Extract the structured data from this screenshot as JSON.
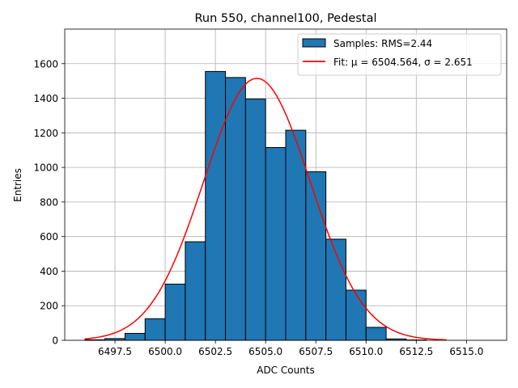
{
  "chart_data": {
    "type": "bar",
    "title": "Run 550, channel100, Pedestal",
    "xlabel": "ADC Counts",
    "ylabel": "Entries",
    "xlim": [
      6495.0,
      6517.0
    ],
    "ylim": [
      0,
      1800
    ],
    "xticks": [
      6497.5,
      6500.0,
      6502.5,
      6505.0,
      6507.5,
      6510.0,
      6512.5,
      6515.0
    ],
    "xtick_labels": [
      "6497.5",
      "6500.0",
      "6502.5",
      "6505.0",
      "6507.5",
      "6510.0",
      "6512.5",
      "6515.0"
    ],
    "yticks": [
      0,
      200,
      400,
      600,
      800,
      1000,
      1200,
      1400,
      1600
    ],
    "ytick_labels": [
      "0",
      "200",
      "400",
      "600",
      "800",
      "1000",
      "1200",
      "1400",
      "1600"
    ],
    "grid": true,
    "bin_width": 1.0,
    "bins": [
      {
        "left": 6496,
        "count": 3
      },
      {
        "left": 6497,
        "count": 10
      },
      {
        "left": 6498,
        "count": 40
      },
      {
        "left": 6499,
        "count": 125
      },
      {
        "left": 6500,
        "count": 325
      },
      {
        "left": 6501,
        "count": 570
      },
      {
        "left": 6502,
        "count": 1555
      },
      {
        "left": 6503,
        "count": 1520
      },
      {
        "left": 6504,
        "count": 1395
      },
      {
        "left": 6505,
        "count": 1115
      },
      {
        "left": 6506,
        "count": 1215
      },
      {
        "left": 6507,
        "count": 975
      },
      {
        "left": 6508,
        "count": 585
      },
      {
        "left": 6509,
        "count": 290
      },
      {
        "left": 6510,
        "count": 75
      },
      {
        "left": 6511,
        "count": 8
      },
      {
        "left": 6512,
        "count": 2
      },
      {
        "left": 6513,
        "count": 0
      },
      {
        "left": 6514,
        "count": 0
      },
      {
        "left": 6515,
        "count": 0
      }
    ],
    "fit": {
      "type": "gaussian",
      "mu": 6504.564,
      "sigma": 2.651,
      "amplitude": 1515,
      "x_range": [
        6496.0,
        6514.0
      ]
    },
    "legend": {
      "placement": "top-right",
      "entries": [
        {
          "label": "Samples: RMS=2.44",
          "kind": "patch"
        },
        {
          "label": "Fit: μ = 6504.564, σ = 2.651",
          "kind": "line"
        }
      ]
    },
    "colors": {
      "bar_fill": "#1f77b4",
      "bar_edge": "#000000",
      "fit_line": "#ff0000",
      "grid": "#b0b0b0"
    }
  }
}
